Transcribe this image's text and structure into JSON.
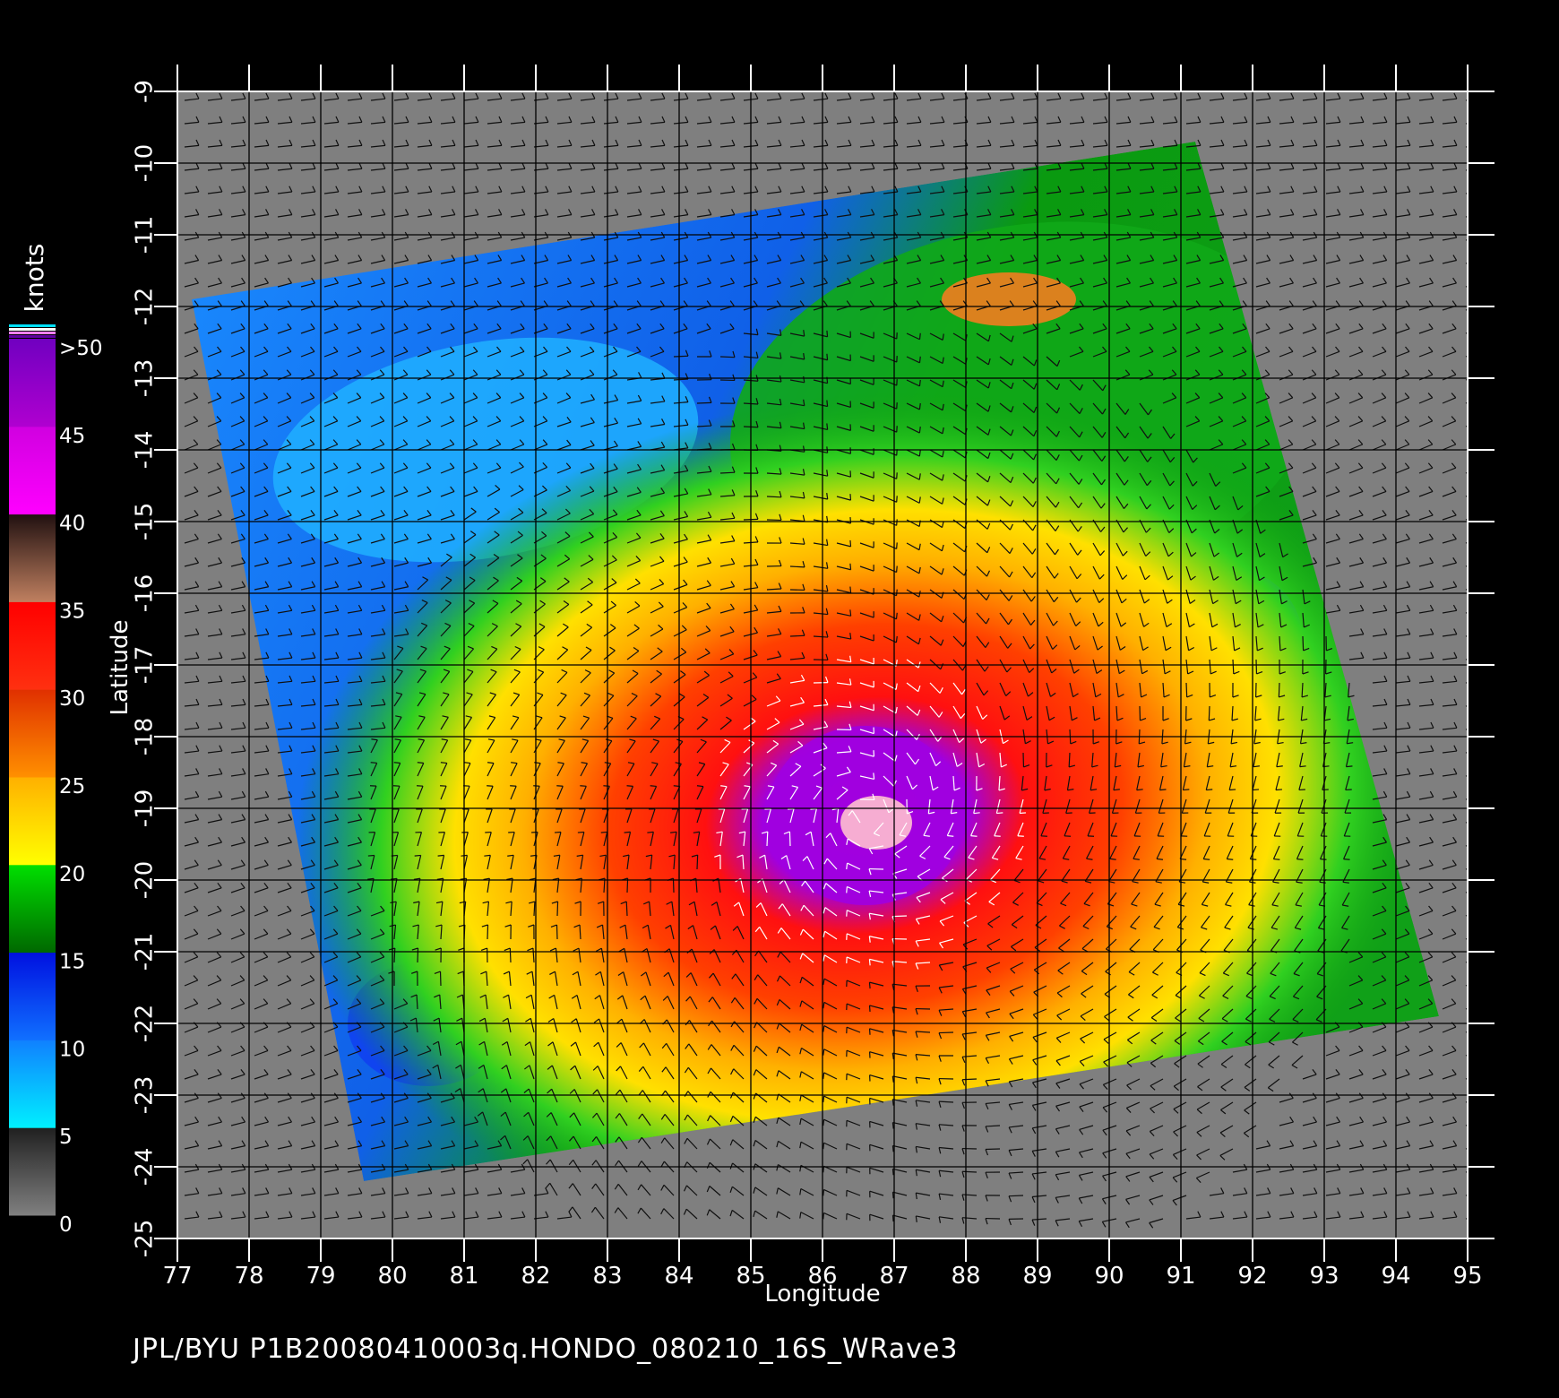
{
  "axes": {
    "x_label": "Longitude",
    "y_label": "Latitude",
    "x_ticks": [
      "77",
      "78",
      "79",
      "80",
      "81",
      "82",
      "83",
      "84",
      "85",
      "86",
      "87",
      "88",
      "89",
      "90",
      "91",
      "92",
      "93",
      "94",
      "95"
    ],
    "y_ticks": [
      "-9",
      "-10",
      "-11",
      "-12",
      "-13",
      "-14",
      "-15",
      "-16",
      "-17",
      "-18",
      "-19",
      "-20",
      "-21",
      "-22",
      "-23",
      "-24",
      "-25"
    ],
    "x_range": [
      77,
      95
    ],
    "y_range": [
      -25,
      -9
    ]
  },
  "colorbar": {
    "unit": "knots",
    "tick_labels": [
      ">50",
      "45",
      "40",
      "35",
      "30",
      "25",
      "20",
      "15",
      "10",
      "5",
      "0"
    ],
    "bands": [
      {
        "from": 0,
        "to": 5,
        "colors": [
          "#808080",
          "#202020"
        ]
      },
      {
        "from": 5,
        "to": 10,
        "colors": [
          "#00f0ff",
          "#1080ff"
        ]
      },
      {
        "from": 10,
        "to": 15,
        "colors": [
          "#1070ff",
          "#0010e0"
        ]
      },
      {
        "from": 15,
        "to": 20,
        "colors": [
          "#006800",
          "#00e000"
        ]
      },
      {
        "from": 20,
        "to": 25,
        "colors": [
          "#ffff00",
          "#ffb000"
        ]
      },
      {
        "from": 25,
        "to": 30,
        "colors": [
          "#ff9000",
          "#e03000"
        ]
      },
      {
        "from": 30,
        "to": 35,
        "colors": [
          "#ff3010",
          "#ff0000"
        ]
      },
      {
        "from": 35,
        "to": 40,
        "colors": [
          "#c08060",
          "#201010"
        ]
      },
      {
        "from": 40,
        "to": 45,
        "colors": [
          "#ff00ff",
          "#d000e0"
        ]
      },
      {
        "from": 45,
        "to": 50,
        "colors": [
          "#b000d0",
          "#7000c0"
        ]
      }
    ]
  },
  "swath": {
    "corners_lonlat": [
      [
        77.2,
        -11.9
      ],
      [
        91.2,
        -9.7
      ],
      [
        94.6,
        -21.9
      ],
      [
        79.6,
        -24.2
      ]
    ],
    "storm_center_lonlat": [
      86.6,
      -19.1
    ]
  },
  "colors": {
    "background": "#000000",
    "land_fill": "#7f7f7f",
    "grid": "#000000",
    "text": "#ffffff"
  },
  "footer": {
    "caption": "JPL/BYU  P1B20080410003q.HONDO_080210_16S_WRave3"
  }
}
